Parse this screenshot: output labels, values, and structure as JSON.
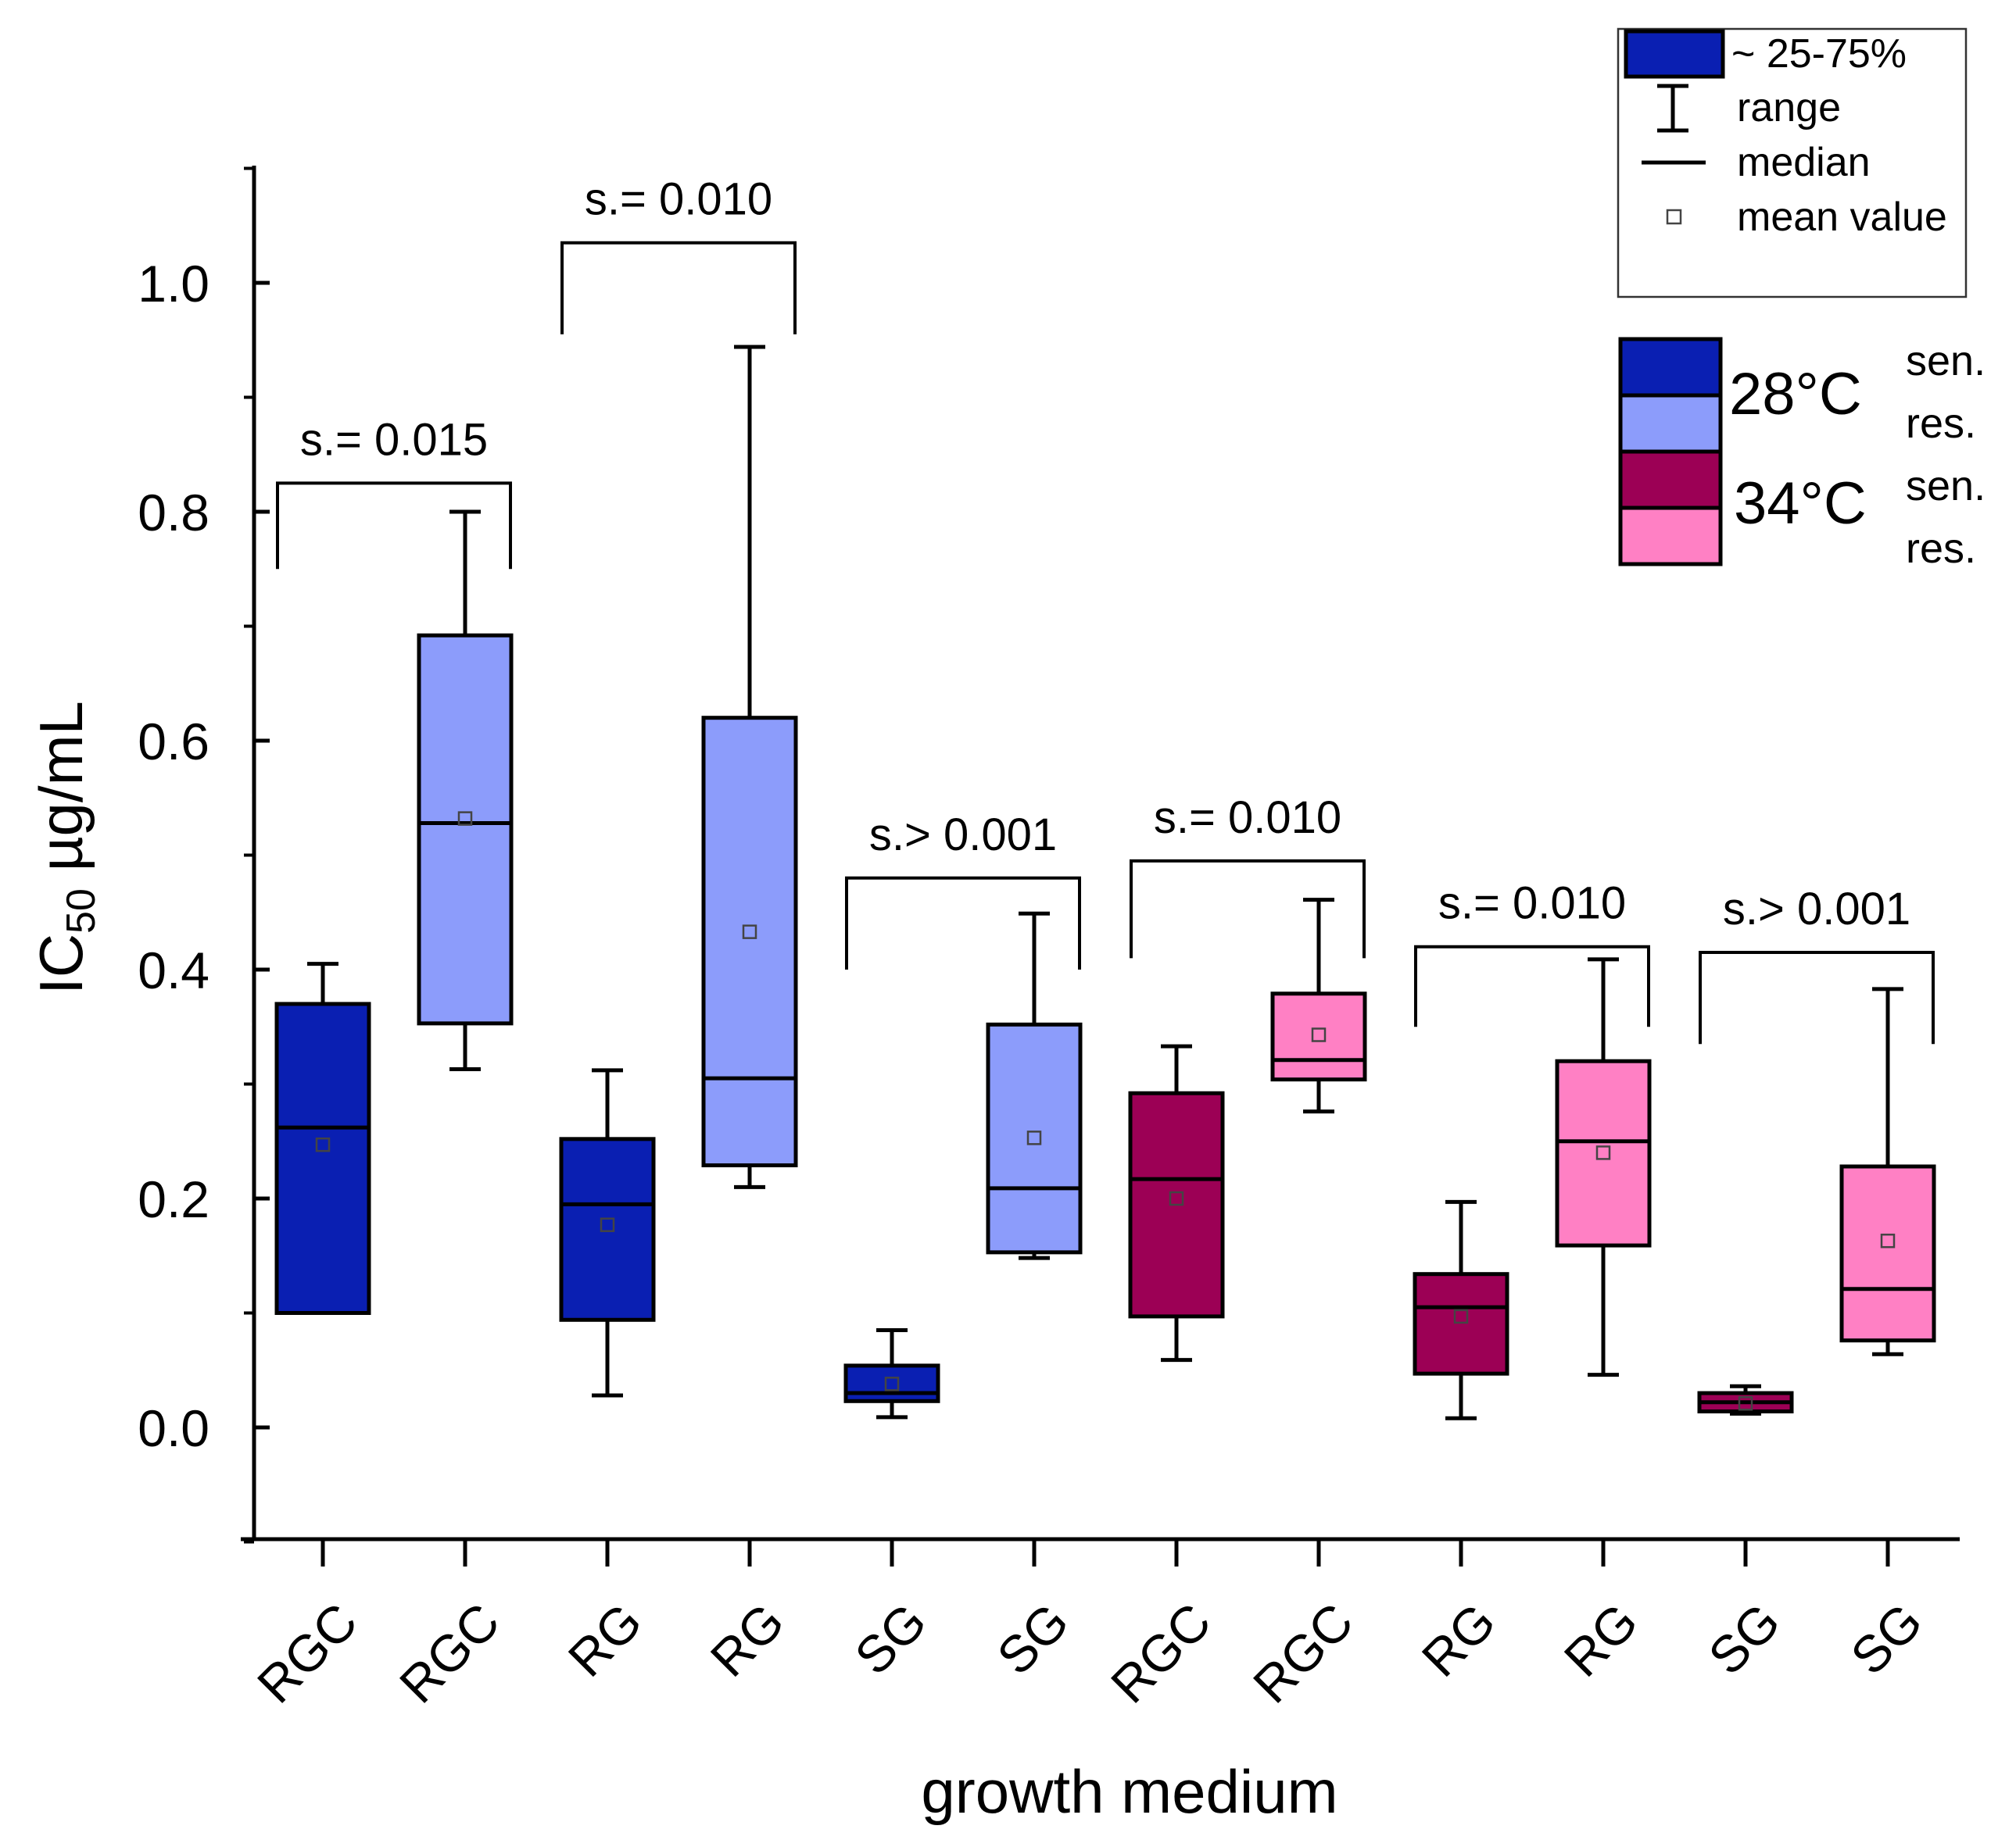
{
  "chart_data": {
    "type": "box",
    "xlabel": "growth medium",
    "ylabel_main": "IC",
    "ylabel_sub": "50",
    "ylabel_unit": " µg/mL",
    "ylim": [
      -0.1,
      1.1
    ],
    "yticks": [
      {
        "value": 0.0,
        "label": "0.0"
      },
      {
        "value": 0.2,
        "label": "0.2"
      },
      {
        "value": 0.4,
        "label": "0.4"
      },
      {
        "value": 0.6,
        "label": "0.6"
      },
      {
        "value": 0.8,
        "label": "0.8"
      },
      {
        "value": 1.0,
        "label": "1.0"
      }
    ],
    "colors": {
      "sen28": "#0a1fb2",
      "res28": "#8c9cfb",
      "sen34": "#9c0055",
      "res34": "#ff80c4"
    },
    "boxes": [
      {
        "category": "RGC",
        "group": "sen28",
        "min": 0.1,
        "q1": 0.1,
        "median": 0.262,
        "q3": 0.37,
        "max": 0.405,
        "mean": 0.247
      },
      {
        "category": "RGC",
        "group": "res28",
        "min": 0.313,
        "q1": 0.353,
        "median": 0.528,
        "q3": 0.692,
        "max": 0.8,
        "mean": 0.532
      },
      {
        "category": "RG",
        "group": "sen28",
        "min": 0.028,
        "q1": 0.094,
        "median": 0.195,
        "q3": 0.252,
        "max": 0.312,
        "mean": 0.177
      },
      {
        "category": "RG",
        "group": "res28",
        "min": 0.21,
        "q1": 0.229,
        "median": 0.305,
        "q3": 0.62,
        "max": 0.944,
        "mean": 0.433
      },
      {
        "category": "SG",
        "group": "sen28",
        "min": 0.009,
        "q1": 0.023,
        "median": 0.03,
        "q3": 0.054,
        "max": 0.085,
        "mean": 0.038
      },
      {
        "category": "SG",
        "group": "res28",
        "min": 0.148,
        "q1": 0.153,
        "median": 0.209,
        "q3": 0.352,
        "max": 0.449,
        "mean": 0.253
      },
      {
        "category": "RGC",
        "group": "sen34",
        "min": 0.059,
        "q1": 0.097,
        "median": 0.217,
        "q3": 0.292,
        "max": 0.333,
        "mean": 0.2
      },
      {
        "category": "RGC",
        "group": "res34",
        "min": 0.276,
        "q1": 0.304,
        "median": 0.321,
        "q3": 0.379,
        "max": 0.461,
        "mean": 0.343
      },
      {
        "category": "RG",
        "group": "sen34",
        "min": 0.008,
        "q1": 0.047,
        "median": 0.105,
        "q3": 0.134,
        "max": 0.197,
        "mean": 0.097
      },
      {
        "category": "RG",
        "group": "res34",
        "min": 0.046,
        "q1": 0.159,
        "median": 0.25,
        "q3": 0.32,
        "max": 0.409,
        "mean": 0.24
      },
      {
        "category": "SG",
        "group": "sen34",
        "min": 0.012,
        "q1": 0.014,
        "median": 0.022,
        "q3": 0.03,
        "max": 0.036,
        "mean": 0.021
      },
      {
        "category": "SG",
        "group": "res34",
        "min": 0.064,
        "q1": 0.076,
        "median": 0.121,
        "q3": 0.228,
        "max": 0.383,
        "mean": 0.163
      }
    ],
    "significance": [
      {
        "label": "s.= 0.015",
        "from": 0,
        "to": 1,
        "y": 0.825,
        "drop_left": 0.75,
        "drop_right": 0.75
      },
      {
        "label": "s.= 0.010",
        "from": 2,
        "to": 3,
        "y": 1.035,
        "drop_left": 0.955,
        "drop_right": 0.955
      },
      {
        "label": "s.> 0.001",
        "from": 4,
        "to": 5,
        "y": 0.48,
        "drop_left": 0.4,
        "drop_right": 0.4
      },
      {
        "label": "s.= 0.010",
        "from": 6,
        "to": 7,
        "y": 0.495,
        "drop_left": 0.41,
        "drop_right": 0.41
      },
      {
        "label": "s.= 0.010",
        "from": 8,
        "to": 9,
        "y": 0.42,
        "drop_left": 0.35,
        "drop_right": 0.35
      },
      {
        "label": "s.> 0.001",
        "from": 10,
        "to": 11,
        "y": 0.415,
        "drop_left": 0.335,
        "drop_right": 0.335
      }
    ],
    "legend_style": {
      "box_label": "~ 25-75%",
      "range_label": "range",
      "median_label": "median",
      "mean_label": "mean value"
    },
    "legend_groups": {
      "temp28": "28°C",
      "temp34": "34°C",
      "sen28_label": "sen.",
      "res28_label": "res.",
      "sen34_label": "sen.",
      "res34_label": "res."
    }
  }
}
